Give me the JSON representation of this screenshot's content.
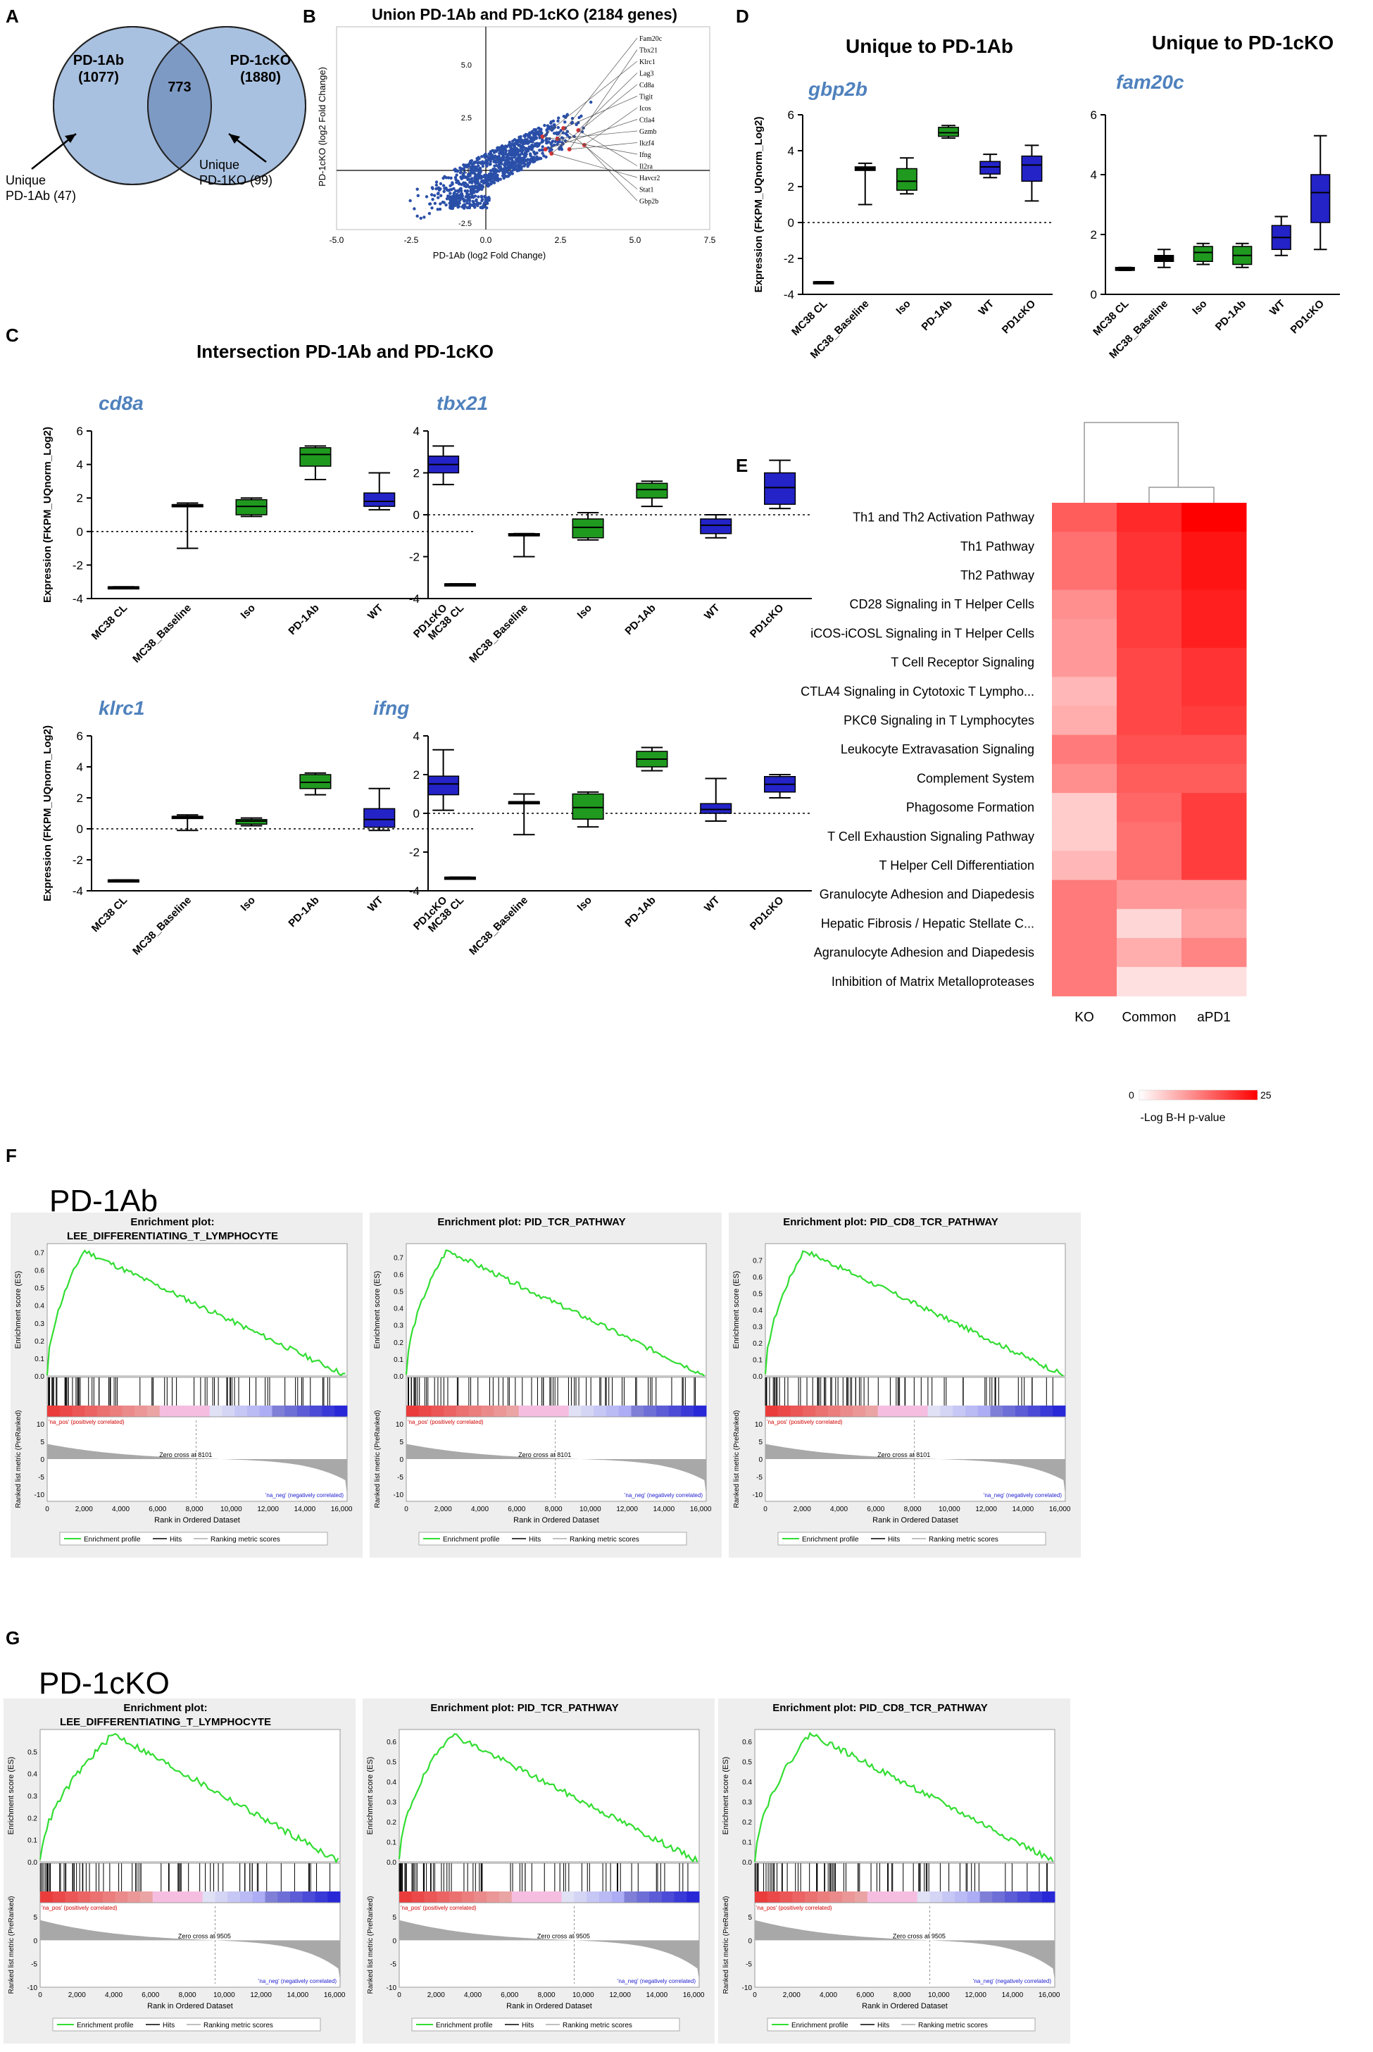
{
  "panel_labels": [
    "A",
    "B",
    "C",
    "D",
    "E",
    "F",
    "G"
  ],
  "colors": {
    "venn_fill": "#a9c1e0",
    "venn_overlap": "#7d9ac4",
    "gene_title": "#4f81bd",
    "green": "#1f9a1f",
    "blue": "#2323c8",
    "scatter": "#2a4fa8",
    "heat_high": "#ff0000",
    "gsea_line": "#33dd33"
  },
  "venn": {
    "left_label": "PD-1Ab",
    "left_count": "(1077)",
    "right_label": "PD-1cKO",
    "right_count": "(1880)",
    "overlap_count": "773",
    "unique_left": [
      "Unique",
      "PD-1Ab (47)"
    ],
    "unique_right": [
      "Unique",
      "PD-1KO (99)"
    ]
  },
  "scatter": {
    "title": "Union PD-1Ab and PD-1cKO (2184 genes)",
    "xlabel": "PD-1Ab (log2 Fold Change)",
    "ylabel": "PD-1cKO (log2 Fold Change)",
    "x_ticks": [
      "-5.0",
      "-2.5",
      "0.0",
      "2.5",
      "5.0",
      "7.5"
    ],
    "y_ticks": [
      "5.0",
      "2.5",
      "0.0",
      "-2.5"
    ],
    "gene_labels": [
      "Fam20c",
      "Tbx21",
      "Klrc1",
      "Lag3",
      "Cd8a",
      "Tigit",
      "Icos",
      "Ctla4",
      "Gzmb",
      "Ikzf4",
      "Ifng",
      "Il2ra",
      "Havcr2",
      "Stat1",
      "Gbp2b"
    ]
  },
  "panel_c_title": "Intersection PD-1Ab and PD-1cKO",
  "panel_d_titles": [
    "Unique to PD-1Ab",
    "Unique to PD-1cKO"
  ],
  "box_ylabel": "Expression (FKPM_UQnorm_Log2)",
  "box_categories": [
    "MC38 CL",
    "MC38_Baseline",
    "Iso",
    "PD-1Ab",
    "WT",
    "PD1cKO"
  ],
  "chart_data": [
    {
      "type": "box",
      "gene": "cd8a",
      "ylabel": "Expression (FKPM_UQnorm_Log2)",
      "categories": [
        "MC38 CL",
        "MC38_Baseline",
        "Iso",
        "PD-1Ab",
        "WT",
        "PD1cKO"
      ],
      "ylim": [
        -4,
        6
      ],
      "yticks": [
        -4,
        -2,
        0,
        2,
        4,
        6
      ],
      "boxes": [
        {
          "min": -3.3,
          "q1": -3.3,
          "median": -3.3,
          "q3": -3.3,
          "max": -3.3
        },
        {
          "min": -1.0,
          "q1": 1.5,
          "median": 1.6,
          "q3": 1.6,
          "max": 1.7
        },
        {
          "min": 0.9,
          "q1": 1.0,
          "median": 1.5,
          "q3": 1.9,
          "max": 2.0
        },
        {
          "min": 3.1,
          "q1": 3.9,
          "median": 4.6,
          "q3": 5.0,
          "max": 5.1
        },
        {
          "min": 1.3,
          "q1": 1.5,
          "median": 1.8,
          "q3": 2.3,
          "max": 3.5
        },
        {
          "min": 2.8,
          "q1": 3.5,
          "median": 4.0,
          "q3": 4.5,
          "max": 5.1
        }
      ]
    },
    {
      "type": "box",
      "gene": "tbx21",
      "ylabel": "Expression (FKPM_UQnorm_Log2)",
      "categories": [
        "MC38 CL",
        "MC38_Baseline",
        "Iso",
        "PD-1Ab",
        "WT",
        "PD1cKO"
      ],
      "ylim": [
        -4,
        4
      ],
      "yticks": [
        -4,
        -2,
        0,
        2,
        4
      ],
      "boxes": [
        {
          "min": -3.3,
          "q1": -3.3,
          "median": -3.3,
          "q3": -3.3,
          "max": -3.3
        },
        {
          "min": -2.0,
          "q1": -1.0,
          "median": -1.0,
          "q3": -0.9,
          "max": -0.9
        },
        {
          "min": -1.2,
          "q1": -1.1,
          "median": -0.6,
          "q3": -0.2,
          "max": 0.1
        },
        {
          "min": 0.4,
          "q1": 0.8,
          "median": 1.2,
          "q3": 1.5,
          "max": 1.6
        },
        {
          "min": -1.1,
          "q1": -0.9,
          "median": -0.5,
          "q3": -0.2,
          "max": 0.0
        },
        {
          "min": 0.3,
          "q1": 0.5,
          "median": 1.3,
          "q3": 2.0,
          "max": 2.6
        }
      ]
    },
    {
      "type": "box",
      "gene": "klrc1",
      "ylabel": "Expression (FKPM_UQnorm_Log2)",
      "categories": [
        "MC38 CL",
        "MC38_Baseline",
        "Iso",
        "PD-1Ab",
        "WT",
        "PD1cKO"
      ],
      "ylim": [
        -4,
        6
      ],
      "yticks": [
        -4,
        -2,
        0,
        2,
        4,
        6
      ],
      "boxes": [
        {
          "min": -3.3,
          "q1": -3.3,
          "median": -3.3,
          "q3": -3.3,
          "max": -3.3
        },
        {
          "min": -0.1,
          "q1": 0.7,
          "median": 0.8,
          "q3": 0.8,
          "max": 0.9
        },
        {
          "min": 0.2,
          "q1": 0.3,
          "median": 0.5,
          "q3": 0.6,
          "max": 0.7
        },
        {
          "min": 2.2,
          "q1": 2.6,
          "median": 3.0,
          "q3": 3.5,
          "max": 3.6
        },
        {
          "min": -0.1,
          "q1": 0.1,
          "median": 0.6,
          "q3": 1.3,
          "max": 2.6
        },
        {
          "min": 1.2,
          "q1": 2.2,
          "median": 2.9,
          "q3": 3.4,
          "max": 5.1
        }
      ]
    },
    {
      "type": "box",
      "gene": "ifng",
      "ylabel": "Expression (FKPM_UQnorm_Log2)",
      "categories": [
        "MC38 CL",
        "MC38_Baseline",
        "Iso",
        "PD-1Ab",
        "WT",
        "PD1cKO"
      ],
      "ylim": [
        -4,
        4
      ],
      "yticks": [
        -4,
        -2,
        0,
        2,
        4
      ],
      "boxes": [
        {
          "min": -3.3,
          "q1": -3.3,
          "median": -3.3,
          "q3": -3.3,
          "max": -3.3
        },
        {
          "min": -1.1,
          "q1": 0.5,
          "median": 0.6,
          "q3": 0.6,
          "max": 1.0
        },
        {
          "min": -0.7,
          "q1": -0.3,
          "median": 0.3,
          "q3": 1.0,
          "max": 1.1
        },
        {
          "min": 2.2,
          "q1": 2.4,
          "median": 2.8,
          "q3": 3.2,
          "max": 3.4
        },
        {
          "min": -0.4,
          "q1": 0.0,
          "median": 0.2,
          "q3": 0.5,
          "max": 1.8
        },
        {
          "min": 0.8,
          "q1": 1.1,
          "median": 1.5,
          "q3": 1.9,
          "max": 2.0
        }
      ]
    },
    {
      "type": "box",
      "gene": "gbp2b",
      "ylabel": "Expression (FKPM_UQnorm_Log2)",
      "categories": [
        "MC38 CL",
        "MC38_Baseline",
        "Iso",
        "PD-1Ab",
        "WT",
        "PD1cKO"
      ],
      "ylim": [
        -4,
        6
      ],
      "yticks": [
        -4,
        -2,
        0,
        2,
        4,
        6
      ],
      "boxes": [
        {
          "min": -3.3,
          "q1": -3.3,
          "median": -3.3,
          "q3": -3.3,
          "max": -3.3
        },
        {
          "min": 1.0,
          "q1": 2.9,
          "median": 3.0,
          "q3": 3.1,
          "max": 3.3
        },
        {
          "min": 1.6,
          "q1": 1.8,
          "median": 2.3,
          "q3": 3.0,
          "max": 3.6
        },
        {
          "min": 4.7,
          "q1": 4.8,
          "median": 5.0,
          "q3": 5.3,
          "max": 5.4
        },
        {
          "min": 2.5,
          "q1": 2.7,
          "median": 3.1,
          "q3": 3.4,
          "max": 3.8
        },
        {
          "min": 1.2,
          "q1": 2.3,
          "median": 3.2,
          "q3": 3.7,
          "max": 4.3
        }
      ]
    },
    {
      "type": "box",
      "gene": "fam20c",
      "ylabel": "",
      "categories": [
        "MC38 CL",
        "MC38_Baseline",
        "Iso",
        "PD-1Ab",
        "WT",
        "PD1cKO"
      ],
      "ylim": [
        0,
        6
      ],
      "yticks": [
        0,
        2,
        4,
        6
      ],
      "boxes": [
        {
          "min": 0.8,
          "q1": 0.8,
          "median": 0.85,
          "q3": 0.9,
          "max": 0.9
        },
        {
          "min": 0.9,
          "q1": 1.1,
          "median": 1.2,
          "q3": 1.3,
          "max": 1.5
        },
        {
          "min": 1.0,
          "q1": 1.1,
          "median": 1.4,
          "q3": 1.6,
          "max": 1.7
        },
        {
          "min": 0.9,
          "q1": 1.0,
          "median": 1.3,
          "q3": 1.6,
          "max": 1.7
        },
        {
          "min": 1.3,
          "q1": 1.5,
          "median": 1.9,
          "q3": 2.3,
          "max": 2.6
        },
        {
          "min": 1.5,
          "q1": 2.4,
          "median": 3.4,
          "q3": 4.0,
          "max": 5.3
        }
      ]
    },
    {
      "type": "heatmap",
      "columns": [
        "KO",
        "Common",
        "aPD1"
      ],
      "rows": [
        "Th1 and Th2 Activation Pathway",
        "Th1 Pathway",
        "Th2 Pathway",
        "CD28 Signaling in T Helper Cells",
        "iCOS-iCOSL Signaling in T Helper Cells",
        "T Cell Receptor Signaling",
        "CTLA4 Signaling in Cytotoxic T Lympho...",
        "PKCθ Signaling in T Lymphocytes",
        "Leukocyte Extravasation Signaling",
        "Complement System",
        "Phagosome Formation",
        "T Cell Exhaustion Signaling Pathway",
        "T Helper Cell Differentiation",
        "Granulocyte Adhesion and Diapedesis",
        "Hepatic Fibrosis / Hepatic Stellate C...",
        "Agranulocyte Adhesion and Diapedesis",
        "Inhibition of Matrix Metalloproteases"
      ],
      "values": [
        [
          16,
          21,
          25
        ],
        [
          14,
          20,
          23
        ],
        [
          14,
          20,
          23
        ],
        [
          11,
          19,
          22
        ],
        [
          10,
          19,
          22
        ],
        [
          10,
          18,
          20
        ],
        [
          7,
          18,
          20
        ],
        [
          8,
          18,
          19
        ],
        [
          13,
          17,
          17
        ],
        [
          11,
          16,
          16
        ],
        [
          5,
          15,
          19
        ],
        [
          5,
          14,
          19
        ],
        [
          7,
          14,
          19
        ],
        [
          13,
          10,
          10
        ],
        [
          13,
          4,
          9
        ],
        [
          13,
          8,
          12
        ],
        [
          13,
          3,
          3
        ]
      ],
      "scale": [
        0,
        25
      ],
      "legend_label": "-Log B-H p-value",
      "legend_min": "0",
      "legend_max": "25"
    },
    {
      "type": "line",
      "group": "PD-1Ab",
      "plots": [
        {
          "title1": "Enrichment plot:",
          "title2": "LEE_DIFFERENTIATING_T_LYMPHOCYTE",
          "peak_es": 0.71,
          "peak_rank": 2000,
          "ylim": [
            0,
            0.75
          ],
          "yticks": [
            "0.0",
            "0.1",
            "0.2",
            "0.3",
            "0.4",
            "0.5",
            "0.6",
            "0.7"
          ],
          "zero_cross": "Zero cross at 8101"
        },
        {
          "title1": "",
          "title2": "Enrichment plot: PID_TCR_PATHWAY",
          "peak_es": 0.74,
          "peak_rank": 2200,
          "ylim": [
            0,
            0.78
          ],
          "yticks": [
            "0.0",
            "0.1",
            "0.2",
            "0.3",
            "0.4",
            "0.5",
            "0.6",
            "0.7"
          ],
          "zero_cross": "Zero cross at 8101"
        },
        {
          "title1": "",
          "title2": "Enrichment plot: PID_CD8_TCR_PATHWAY",
          "peak_es": 0.76,
          "peak_rank": 2100,
          "ylim": [
            0,
            0.8
          ],
          "yticks": [
            "0.0",
            "0.1",
            "0.2",
            "0.3",
            "0.4",
            "0.5",
            "0.6",
            "0.7"
          ],
          "zero_cross": "Zero cross at 8101"
        }
      ]
    },
    {
      "type": "line",
      "group": "PD-1cKO",
      "plots": [
        {
          "title1": "Enrichment plot:",
          "title2": "LEE_DIFFERENTIATING_T_LYMPHOCYTE",
          "peak_es": 0.58,
          "peak_rank": 4000,
          "ylim": [
            0,
            0.6
          ],
          "yticks": [
            "0.0",
            "0.1",
            "0.2",
            "0.3",
            "0.4",
            "0.5"
          ],
          "zero_cross": "Zero cross at 9505"
        },
        {
          "title1": "",
          "title2": "Enrichment plot: PID_TCR_PATHWAY",
          "peak_es": 0.64,
          "peak_rank": 2800,
          "ylim": [
            0,
            0.66
          ],
          "yticks": [
            "0.0",
            "0.1",
            "0.2",
            "0.3",
            "0.4",
            "0.5",
            "0.6"
          ],
          "zero_cross": "Zero cross at 9505"
        },
        {
          "title1": "",
          "title2": "Enrichment plot: PID_CD8_TCR_PATHWAY",
          "peak_es": 0.64,
          "peak_rank": 3000,
          "ylim": [
            0,
            0.66
          ],
          "yticks": [
            "0.0",
            "0.1",
            "0.2",
            "0.3",
            "0.4",
            "0.5",
            "0.6"
          ],
          "zero_cross": "Zero cross at 9505"
        }
      ]
    }
  ],
  "gsea": {
    "f_heading": "PD-1Ab",
    "g_heading": "PD-1cKO",
    "es_ylabel": "Enrichment score (ES)",
    "metric_ylabel": "Ranked list metric (PreRanked)",
    "xlabel": "Rank in Ordered Dataset",
    "x_ticks": [
      "0",
      "2,000",
      "4,000",
      "6,000",
      "8,000",
      "10,000",
      "12,000",
      "14,000",
      "16,000"
    ],
    "pos_label": "'na_pos' (positively correlated)",
    "neg_label": "'na_neg' (negatively correlated)",
    "legend": [
      "Enrichment profile",
      "Hits",
      "Ranking metric scores"
    ],
    "f_metric_ticks": [
      "10",
      "5",
      "0",
      "-5",
      "-10"
    ],
    "g_metric_ticks": [
      "5",
      "0",
      "-5",
      "-10"
    ]
  }
}
